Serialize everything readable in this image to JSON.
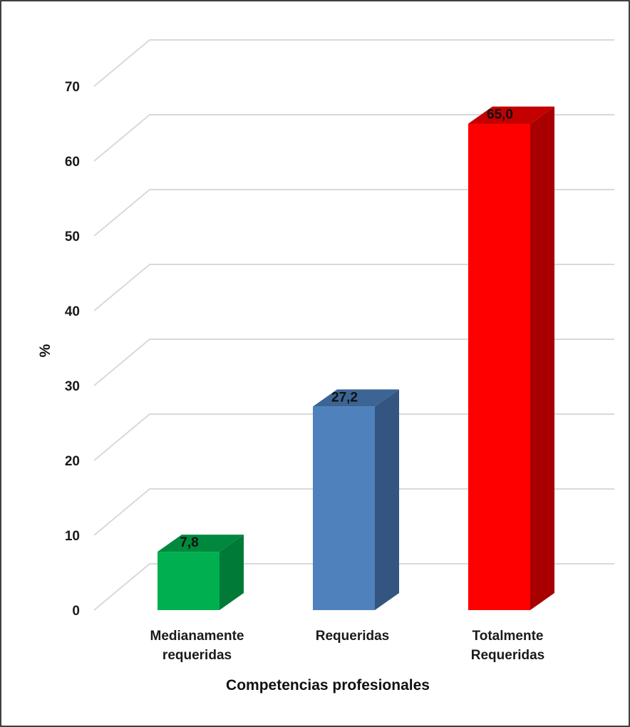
{
  "chart_data": {
    "type": "bar",
    "title": "",
    "xlabel": "Competencias profesionales",
    "ylabel": "%",
    "ylim": [
      0,
      70
    ],
    "yticks": [
      0,
      10,
      20,
      30,
      40,
      50,
      60,
      70
    ],
    "grid": true,
    "legend": "none",
    "categories": [
      [
        "Medianamente",
        "requeridas"
      ],
      [
        "Requeridas"
      ],
      [
        "Totalmente",
        "Requeridas"
      ]
    ],
    "values": [
      7.8,
      27.2,
      65.0
    ],
    "value_labels": [
      "7,8",
      "27,2",
      "65,0"
    ],
    "colors": [
      {
        "front": "#00b050",
        "side": "#007a37",
        "top": "#00893e"
      },
      {
        "front": "#4f81bd",
        "side": "#33557f",
        "top": "#3c6494"
      },
      {
        "front": "#ff0000",
        "side": "#a80000",
        "top": "#c40000"
      }
    ],
    "gridline_color": "#d9d9d9",
    "border_color": "#000000"
  }
}
